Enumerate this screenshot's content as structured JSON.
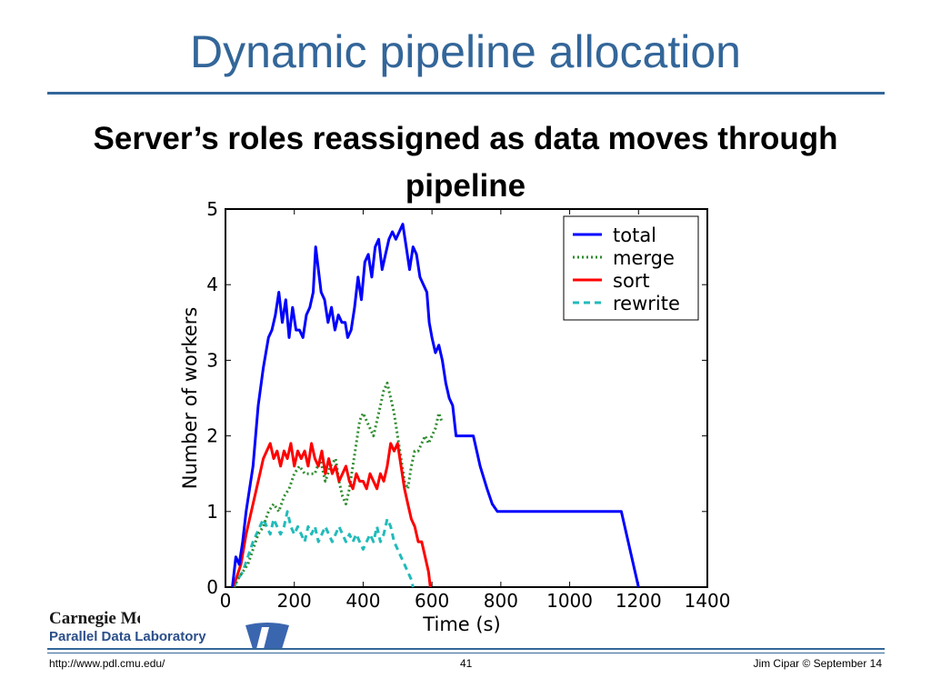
{
  "slide": {
    "title": "Dynamic pipeline allocation",
    "subtitle": "Server’s roles reassigned as data moves through pipeline",
    "footer_url": "http://www.pdl.cmu.edu/",
    "page_number": "41",
    "footer_author": "Jim Cipar  © September 14",
    "logo_line1": "Carnegie Mellon",
    "logo_line2": "Parallel Data Laboratory"
  },
  "colors": {
    "title": "#336699",
    "total": "#0000ff",
    "merge": "#2e8b2e",
    "sort": "#ff0000",
    "rewrite": "#22bbbb"
  },
  "chart_data": {
    "type": "line",
    "xlabel": "Time (s)",
    "ylabel": "Number of workers",
    "xlim": [
      0,
      1400
    ],
    "ylim": [
      0,
      5
    ],
    "xticks": [
      0,
      200,
      400,
      600,
      800,
      1000,
      1200,
      1400
    ],
    "yticks": [
      0,
      1,
      2,
      3,
      4,
      5
    ],
    "grid": false,
    "legend_position": "top-right",
    "series": [
      {
        "name": "total",
        "style": "solid",
        "color": "#0000ff",
        "points": [
          [
            20,
            0
          ],
          [
            30,
            0.4
          ],
          [
            40,
            0.3
          ],
          [
            50,
            0.6
          ],
          [
            60,
            1.0
          ],
          [
            70,
            1.3
          ],
          [
            80,
            1.6
          ],
          [
            95,
            2.4
          ],
          [
            110,
            2.9
          ],
          [
            125,
            3.3
          ],
          [
            135,
            3.4
          ],
          [
            145,
            3.6
          ],
          [
            155,
            3.9
          ],
          [
            165,
            3.5
          ],
          [
            175,
            3.8
          ],
          [
            185,
            3.3
          ],
          [
            195,
            3.7
          ],
          [
            205,
            3.4
          ],
          [
            215,
            3.4
          ],
          [
            225,
            3.3
          ],
          [
            235,
            3.6
          ],
          [
            245,
            3.7
          ],
          [
            255,
            3.9
          ],
          [
            262,
            4.5
          ],
          [
            270,
            4.2
          ],
          [
            278,
            3.9
          ],
          [
            288,
            3.8
          ],
          [
            298,
            3.5
          ],
          [
            308,
            3.7
          ],
          [
            318,
            3.4
          ],
          [
            328,
            3.6
          ],
          [
            338,
            3.5
          ],
          [
            348,
            3.5
          ],
          [
            355,
            3.3
          ],
          [
            365,
            3.4
          ],
          [
            375,
            3.7
          ],
          [
            385,
            4.1
          ],
          [
            395,
            3.8
          ],
          [
            405,
            4.3
          ],
          [
            415,
            4.4
          ],
          [
            425,
            4.1
          ],
          [
            435,
            4.5
          ],
          [
            445,
            4.6
          ],
          [
            455,
            4.2
          ],
          [
            465,
            4.4
          ],
          [
            475,
            4.6
          ],
          [
            485,
            4.7
          ],
          [
            495,
            4.6
          ],
          [
            505,
            4.7
          ],
          [
            515,
            4.8
          ],
          [
            525,
            4.5
          ],
          [
            535,
            4.2
          ],
          [
            545,
            4.5
          ],
          [
            555,
            4.4
          ],
          [
            565,
            4.1
          ],
          [
            575,
            4.0
          ],
          [
            585,
            3.9
          ],
          [
            592,
            3.5
          ],
          [
            600,
            3.3
          ],
          [
            610,
            3.1
          ],
          [
            620,
            3.2
          ],
          [
            630,
            3.0
          ],
          [
            640,
            2.7
          ],
          [
            650,
            2.5
          ],
          [
            660,
            2.4
          ],
          [
            670,
            2.0
          ],
          [
            700,
            2.0
          ],
          [
            720,
            2.0
          ],
          [
            725,
            1.9
          ],
          [
            740,
            1.6
          ],
          [
            760,
            1.3
          ],
          [
            775,
            1.1
          ],
          [
            790,
            1.0
          ],
          [
            1150,
            1.0
          ],
          [
            1200,
            0
          ]
        ]
      },
      {
        "name": "merge",
        "style": "dotted",
        "color": "#2e8b2e",
        "points": [
          [
            25,
            0
          ],
          [
            35,
            0.1
          ],
          [
            50,
            0.2
          ],
          [
            65,
            0.3
          ],
          [
            80,
            0.5
          ],
          [
            95,
            0.7
          ],
          [
            110,
            0.8
          ],
          [
            125,
            1.0
          ],
          [
            140,
            1.1
          ],
          [
            155,
            1.0
          ],
          [
            170,
            1.2
          ],
          [
            185,
            1.3
          ],
          [
            200,
            1.5
          ],
          [
            215,
            1.6
          ],
          [
            230,
            1.5
          ],
          [
            245,
            1.5
          ],
          [
            260,
            1.5
          ],
          [
            275,
            1.7
          ],
          [
            290,
            1.4
          ],
          [
            305,
            1.6
          ],
          [
            320,
            1.7
          ],
          [
            330,
            1.4
          ],
          [
            340,
            1.2
          ],
          [
            350,
            1.1
          ],
          [
            360,
            1.3
          ],
          [
            370,
            1.6
          ],
          [
            380,
            1.9
          ],
          [
            390,
            2.2
          ],
          [
            400,
            2.3
          ],
          [
            410,
            2.2
          ],
          [
            420,
            2.1
          ],
          [
            430,
            2.0
          ],
          [
            440,
            2.2
          ],
          [
            450,
            2.4
          ],
          [
            460,
            2.6
          ],
          [
            470,
            2.7
          ],
          [
            480,
            2.5
          ],
          [
            490,
            2.3
          ],
          [
            500,
            2.0
          ],
          [
            510,
            1.7
          ],
          [
            520,
            1.4
          ],
          [
            530,
            1.3
          ],
          [
            540,
            1.6
          ],
          [
            550,
            1.8
          ],
          [
            560,
            1.8
          ],
          [
            570,
            1.9
          ],
          [
            580,
            2.0
          ],
          [
            590,
            1.9
          ],
          [
            600,
            2.0
          ],
          [
            610,
            2.1
          ],
          [
            620,
            2.3
          ],
          [
            628,
            2.2
          ]
        ]
      },
      {
        "name": "sort",
        "style": "solid",
        "color": "#ff0000",
        "points": [
          [
            20,
            0
          ],
          [
            30,
            0.1
          ],
          [
            45,
            0.3
          ],
          [
            60,
            0.7
          ],
          [
            75,
            1.0
          ],
          [
            90,
            1.3
          ],
          [
            100,
            1.5
          ],
          [
            110,
            1.7
          ],
          [
            120,
            1.8
          ],
          [
            130,
            1.9
          ],
          [
            140,
            1.7
          ],
          [
            150,
            1.8
          ],
          [
            160,
            1.6
          ],
          [
            170,
            1.8
          ],
          [
            180,
            1.7
          ],
          [
            190,
            1.9
          ],
          [
            200,
            1.6
          ],
          [
            210,
            1.8
          ],
          [
            220,
            1.7
          ],
          [
            230,
            1.8
          ],
          [
            240,
            1.6
          ],
          [
            250,
            1.9
          ],
          [
            260,
            1.7
          ],
          [
            270,
            1.6
          ],
          [
            280,
            1.8
          ],
          [
            290,
            1.5
          ],
          [
            300,
            1.7
          ],
          [
            310,
            1.5
          ],
          [
            320,
            1.6
          ],
          [
            330,
            1.4
          ],
          [
            340,
            1.5
          ],
          [
            350,
            1.6
          ],
          [
            360,
            1.4
          ],
          [
            370,
            1.3
          ],
          [
            380,
            1.5
          ],
          [
            390,
            1.4
          ],
          [
            400,
            1.4
          ],
          [
            410,
            1.3
          ],
          [
            420,
            1.5
          ],
          [
            430,
            1.4
          ],
          [
            440,
            1.3
          ],
          [
            450,
            1.5
          ],
          [
            460,
            1.4
          ],
          [
            470,
            1.6
          ],
          [
            480,
            1.9
          ],
          [
            490,
            1.8
          ],
          [
            500,
            1.9
          ],
          [
            510,
            1.6
          ],
          [
            520,
            1.3
          ],
          [
            530,
            1.1
          ],
          [
            540,
            0.9
          ],
          [
            550,
            0.8
          ],
          [
            560,
            0.6
          ],
          [
            570,
            0.6
          ],
          [
            580,
            0.4
          ],
          [
            590,
            0.2
          ],
          [
            595,
            0
          ]
        ]
      },
      {
        "name": "rewrite",
        "style": "dashed",
        "color": "#22bbbb",
        "points": [
          [
            25,
            0
          ],
          [
            35,
            0.1
          ],
          [
            50,
            0.2
          ],
          [
            65,
            0.4
          ],
          [
            80,
            0.6
          ],
          [
            90,
            0.7
          ],
          [
            100,
            0.8
          ],
          [
            110,
            0.9
          ],
          [
            120,
            0.8
          ],
          [
            130,
            0.7
          ],
          [
            140,
            0.9
          ],
          [
            150,
            0.8
          ],
          [
            160,
            0.7
          ],
          [
            170,
            0.8
          ],
          [
            180,
            1.0
          ],
          [
            190,
            0.8
          ],
          [
            200,
            0.7
          ],
          [
            210,
            0.8
          ],
          [
            220,
            0.7
          ],
          [
            230,
            0.6
          ],
          [
            240,
            0.8
          ],
          [
            250,
            0.7
          ],
          [
            260,
            0.8
          ],
          [
            270,
            0.6
          ],
          [
            280,
            0.7
          ],
          [
            290,
            0.8
          ],
          [
            300,
            0.7
          ],
          [
            310,
            0.6
          ],
          [
            320,
            0.7
          ],
          [
            330,
            0.8
          ],
          [
            340,
            0.7
          ],
          [
            350,
            0.6
          ],
          [
            360,
            0.7
          ],
          [
            370,
            0.6
          ],
          [
            380,
            0.7
          ],
          [
            390,
            0.6
          ],
          [
            400,
            0.5
          ],
          [
            410,
            0.6
          ],
          [
            420,
            0.7
          ],
          [
            430,
            0.6
          ],
          [
            440,
            0.8
          ],
          [
            450,
            0.6
          ],
          [
            460,
            0.7
          ],
          [
            470,
            0.9
          ],
          [
            480,
            0.8
          ],
          [
            490,
            0.6
          ],
          [
            500,
            0.5
          ],
          [
            510,
            0.4
          ],
          [
            520,
            0.3
          ],
          [
            530,
            0.2
          ],
          [
            540,
            0.1
          ],
          [
            545,
            0
          ]
        ]
      }
    ]
  }
}
